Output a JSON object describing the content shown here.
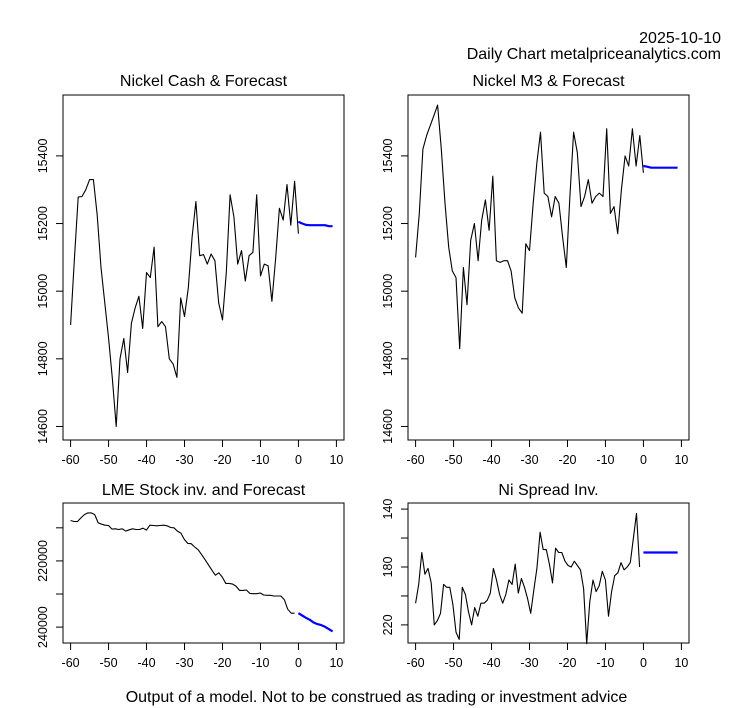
{
  "header": {
    "date": "2025-10-10",
    "source": "Daily Chart metalpriceanalytics.com"
  },
  "footer": "Output of a model. Not to be construed as trading or investment advice",
  "colors": {
    "history": "#000000",
    "forecast": "#0000ff"
  },
  "chart_data": [
    {
      "id": "nickel-cash",
      "type": "line",
      "title": "Nickel Cash & Forecast",
      "xlabel": "",
      "ylabel": "",
      "xlim": [
        -62,
        12
      ],
      "ylim": [
        14560,
        15580
      ],
      "inverted_y": false,
      "xticks": [
        -60,
        -50,
        -40,
        -30,
        -20,
        -10,
        0,
        10
      ],
      "yticks": [
        14600,
        14800,
        15000,
        15200,
        15400
      ],
      "series": [
        {
          "name": "history",
          "x_start": -60,
          "values": [
            14900,
            15095,
            15278,
            15280,
            15300,
            15330,
            15330,
            15225,
            15070,
            14965,
            14860,
            14740,
            14600,
            14800,
            14860,
            14760,
            14905,
            14950,
            14985,
            14890,
            15055,
            15040,
            15130,
            14895,
            14910,
            14895,
            14800,
            14785,
            14745,
            14980,
            14925,
            15010,
            15160,
            15265,
            15105,
            15108,
            15080,
            15110,
            15090,
            14965,
            14915,
            15055,
            15285,
            15220,
            15080,
            15120,
            15030,
            15105,
            15115,
            15285,
            15045,
            15080,
            15075,
            14970,
            15095,
            15245,
            15210,
            15315,
            15195,
            15325,
            15170
          ]
        },
        {
          "name": "forecast",
          "x_start": 0,
          "values": [
            15205,
            15200,
            15196,
            15195,
            15195,
            15195,
            15195,
            15195,
            15192,
            15192
          ]
        }
      ]
    },
    {
      "id": "nickel-m3",
      "type": "line",
      "title": "Nickel M3 & Forecast",
      "xlabel": "",
      "ylabel": "",
      "xlim": [
        -62,
        12
      ],
      "ylim": [
        14560,
        15580
      ],
      "inverted_y": false,
      "xticks": [
        -60,
        -50,
        -40,
        -30,
        -20,
        -10,
        0,
        10
      ],
      "yticks": [
        14600,
        14800,
        15000,
        15200,
        15400
      ],
      "series": [
        {
          "name": "history",
          "x_start": -60,
          "values": [
            15100,
            15230,
            15420,
            15460,
            15490,
            15520,
            15550,
            15420,
            15260,
            15130,
            15060,
            15040,
            14830,
            15070,
            14960,
            15150,
            15200,
            15090,
            15210,
            15270,
            15180,
            15340,
            15090,
            15085,
            15090,
            15090,
            15060,
            14980,
            14950,
            14935,
            15140,
            15120,
            15260,
            15380,
            15470,
            15290,
            15280,
            15220,
            15280,
            15260,
            15160,
            15070,
            15280,
            15470,
            15410,
            15250,
            15280,
            15330,
            15260,
            15280,
            15290,
            15280,
            15480,
            15230,
            15250,
            15170,
            15300,
            15400,
            15370,
            15480,
            15370,
            15460,
            15350
          ]
        },
        {
          "name": "forecast",
          "x_start": 0,
          "values": [
            15370,
            15368,
            15365,
            15365,
            15365,
            15365,
            15365,
            15365,
            15365,
            15365
          ]
        }
      ]
    },
    {
      "id": "lme-stock",
      "type": "line",
      "title": "LME Stock inv. and Forecast",
      "xlabel": "",
      "ylabel": "",
      "xlim": [
        -62,
        12
      ],
      "ylim": [
        202500,
        244800
      ],
      "inverted_y": true,
      "xticks": [
        -60,
        -50,
        -40,
        -30,
        -20,
        -10,
        0,
        10
      ],
      "yticks": [
        210000,
        220000,
        230000,
        240000
      ],
      "ytick_labels": [
        "",
        "220000",
        "",
        "240000"
      ],
      "series": [
        {
          "name": "history",
          "x_start": -60,
          "values": [
            207800,
            208100,
            208100,
            207000,
            206000,
            205500,
            205500,
            206000,
            208500,
            208900,
            209200,
            209300,
            210400,
            210300,
            210500,
            210300,
            211000,
            210600,
            210300,
            210500,
            210500,
            210100,
            210700,
            209200,
            209300,
            209400,
            209300,
            209200,
            209400,
            209900,
            210000,
            211000,
            211600,
            213500,
            214700,
            214800,
            215800,
            216600,
            218100,
            219600,
            221200,
            222800,
            224300,
            223600,
            224900,
            226800,
            226800,
            227000,
            227600,
            228900,
            228900,
            228800,
            229800,
            229900,
            229900,
            229700,
            230300,
            230400,
            230400,
            230600,
            230600,
            230600,
            231700,
            234600,
            235800,
            235800
          ]
        },
        {
          "name": "forecast",
          "x_start": 0,
          "values": [
            235800,
            236500,
            237200,
            237800,
            238600,
            239100,
            239400,
            239900,
            240600,
            241300
          ]
        }
      ]
    },
    {
      "id": "ni-spread",
      "type": "line",
      "title": "Ni Spread Inv.",
      "xlabel": "",
      "ylabel": "",
      "xlim": [
        -62,
        12
      ],
      "ylim": [
        135.8,
        232.5
      ],
      "inverted_y": true,
      "xticks": [
        -60,
        -50,
        -40,
        -30,
        -20,
        -10,
        0,
        10
      ],
      "yticks": [
        140,
        160,
        180,
        200,
        220
      ],
      "ytick_labels": [
        "140",
        "",
        "180",
        "",
        "220"
      ],
      "series": [
        {
          "name": "history",
          "x_start": -60,
          "values": [
            205,
            192,
            170,
            185,
            181,
            191,
            220,
            217,
            212,
            192,
            194,
            194,
            206,
            225,
            230,
            194,
            199,
            211,
            220,
            208,
            214,
            205,
            205,
            203,
            198,
            181,
            189,
            199,
            205,
            199,
            189,
            192,
            178,
            198,
            188,
            194,
            202,
            212,
            196,
            181,
            156,
            168,
            168,
            178,
            191,
            167,
            170,
            170,
            176,
            179,
            180,
            176,
            179,
            182,
            195,
            233,
            204,
            189,
            197,
            193,
            183,
            189,
            214,
            197,
            186,
            184,
            177,
            182,
            180,
            177,
            160,
            143,
            180
          ]
        },
        {
          "name": "forecast",
          "x_start": 0,
          "values": [
            170,
            170,
            170,
            170,
            170,
            170,
            170,
            170,
            170,
            170
          ]
        }
      ]
    }
  ]
}
